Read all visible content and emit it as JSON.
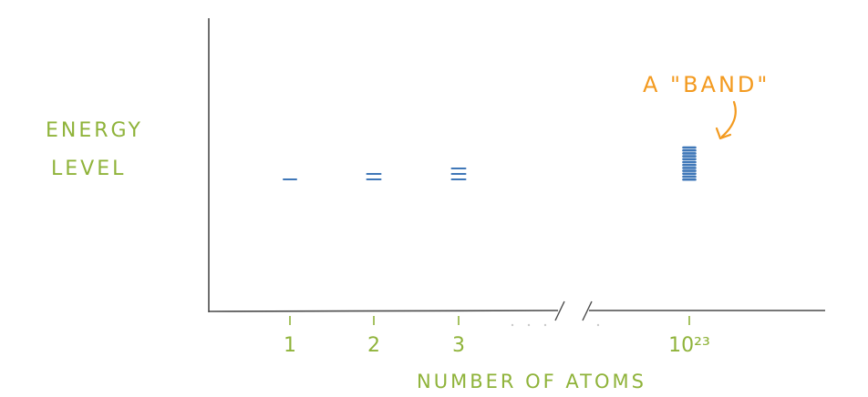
{
  "title": "",
  "y_axis_label_lines": [
    "ENERGY",
    "LEVEL"
  ],
  "x_axis_label": "NUMBER OF ATOMS",
  "annotation": "A \"BAND\"",
  "colors": {
    "axis": "#4a4a4a",
    "label_green": "#8fb33a",
    "annotation_orange": "#f39a1f",
    "level_blue": "#3f77b8"
  },
  "chart_data": {
    "type": "scatter",
    "description_free": true,
    "x_ticks": [
      "1",
      "2",
      "3",
      "10²³"
    ],
    "axis_break": "between 3 and 10²³",
    "groups": [
      {
        "atoms": "1",
        "level_count": 1
      },
      {
        "atoms": "2",
        "level_count": 2
      },
      {
        "atoms": "3",
        "level_count": 3
      },
      {
        "atoms": "10²³",
        "level_count": 12
      }
    ]
  }
}
